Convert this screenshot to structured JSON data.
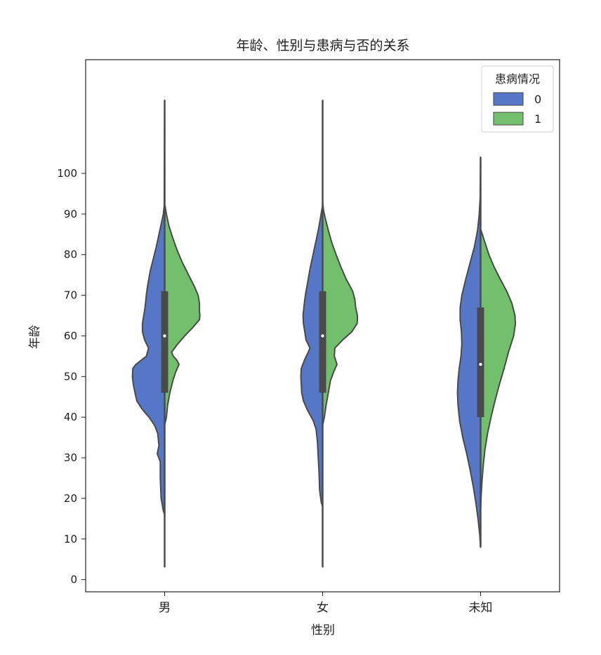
{
  "chart_data": {
    "type": "violin",
    "split": true,
    "title": "年龄、性别与患病与否的关系",
    "xlabel": "性别",
    "ylabel": "年龄",
    "categories": [
      "男",
      "女",
      "未知"
    ],
    "ylim": [
      -3,
      128
    ],
    "yticks": [
      0,
      10,
      20,
      30,
      40,
      50,
      60,
      70,
      80,
      90,
      100
    ],
    "legend": {
      "title": "患病情况",
      "position": "top-right",
      "entries": [
        {
          "label": "0",
          "color": "#5677c8"
        },
        {
          "label": "1",
          "color": "#72c06c"
        }
      ]
    },
    "series": [
      {
        "name": "0",
        "color": "#5677c8",
        "side": "left",
        "violins": [
          {
            "profile": [
              [
                16,
                0.0
              ],
              [
                17,
                0.03
              ],
              [
                20,
                0.08
              ],
              [
                25,
                0.1
              ],
              [
                29,
                0.1
              ],
              [
                31,
                0.17
              ],
              [
                33,
                0.13
              ],
              [
                36,
                0.16
              ],
              [
                38,
                0.23
              ],
              [
                40,
                0.36
              ],
              [
                42,
                0.52
              ],
              [
                44,
                0.64
              ],
              [
                46,
                0.68
              ],
              [
                48,
                0.72
              ],
              [
                50,
                0.74
              ],
              [
                52,
                0.73
              ],
              [
                53,
                0.66
              ],
              [
                55,
                0.42
              ],
              [
                57,
                0.37
              ],
              [
                59,
                0.46
              ],
              [
                61,
                0.51
              ],
              [
                63,
                0.51
              ],
              [
                65,
                0.48
              ],
              [
                67,
                0.45
              ],
              [
                69,
                0.43
              ],
              [
                71,
                0.41
              ],
              [
                73,
                0.38
              ],
              [
                76,
                0.33
              ],
              [
                79,
                0.26
              ],
              [
                82,
                0.19
              ],
              [
                85,
                0.13
              ],
              [
                88,
                0.07
              ],
              [
                90,
                0.03
              ],
              [
                92,
                0.01
              ],
              [
                118,
                0.0
              ]
            ]
          },
          {
            "profile": [
              [
                18,
                0.0
              ],
              [
                19,
                0.03
              ],
              [
                22,
                0.07
              ],
              [
                26,
                0.08
              ],
              [
                30,
                0.1
              ],
              [
                34,
                0.12
              ],
              [
                37,
                0.15
              ],
              [
                39,
                0.21
              ],
              [
                42,
                0.36
              ],
              [
                44,
                0.44
              ],
              [
                46,
                0.48
              ],
              [
                48,
                0.49
              ],
              [
                50,
                0.5
              ],
              [
                52,
                0.49
              ],
              [
                54,
                0.42
              ],
              [
                56,
                0.33
              ],
              [
                57,
                0.29
              ],
              [
                59,
                0.38
              ],
              [
                61,
                0.41
              ],
              [
                63,
                0.44
              ],
              [
                65,
                0.45
              ],
              [
                67,
                0.43
              ],
              [
                69,
                0.41
              ],
              [
                71,
                0.38
              ],
              [
                74,
                0.33
              ],
              [
                77,
                0.28
              ],
              [
                80,
                0.22
              ],
              [
                83,
                0.16
              ],
              [
                86,
                0.1
              ],
              [
                89,
                0.05
              ],
              [
                91,
                0.02
              ],
              [
                92,
                0.0
              ],
              [
                118,
                0.0
              ]
            ]
          },
          {
            "profile": [
              [
                8,
                0.0
              ],
              [
                11,
                0.02
              ],
              [
                15,
                0.06
              ],
              [
                19,
                0.11
              ],
              [
                23,
                0.17
              ],
              [
                27,
                0.24
              ],
              [
                31,
                0.32
              ],
              [
                35,
                0.41
              ],
              [
                39,
                0.48
              ],
              [
                43,
                0.52
              ],
              [
                46,
                0.53
              ],
              [
                49,
                0.52
              ],
              [
                52,
                0.49
              ],
              [
                55,
                0.45
              ],
              [
                58,
                0.43
              ],
              [
                61,
                0.44
              ],
              [
                64,
                0.47
              ],
              [
                67,
                0.47
              ],
              [
                70,
                0.43
              ],
              [
                74,
                0.34
              ],
              [
                78,
                0.24
              ],
              [
                82,
                0.14
              ],
              [
                86,
                0.07
              ],
              [
                90,
                0.03
              ],
              [
                94,
                0.01
              ],
              [
                104,
                0.0
              ]
            ]
          }
        ]
      },
      {
        "name": "1",
        "color": "#72c06c",
        "side": "right",
        "violins": [
          {
            "profile": [
              [
                38,
                0.0
              ],
              [
                40,
                0.04
              ],
              [
                43,
                0.07
              ],
              [
                46,
                0.12
              ],
              [
                49,
                0.19
              ],
              [
                51,
                0.25
              ],
              [
                53,
                0.33
              ],
              [
                54,
                0.28
              ],
              [
                55,
                0.2
              ],
              [
                56,
                0.16
              ],
              [
                58,
                0.3
              ],
              [
                60,
                0.46
              ],
              [
                62,
                0.64
              ],
              [
                64,
                0.8
              ],
              [
                65,
                0.81
              ],
              [
                66,
                0.8
              ],
              [
                68,
                0.8
              ],
              [
                70,
                0.77
              ],
              [
                72,
                0.69
              ],
              [
                75,
                0.55
              ],
              [
                78,
                0.41
              ],
              [
                81,
                0.29
              ],
              [
                84,
                0.19
              ],
              [
                87,
                0.1
              ],
              [
                90,
                0.04
              ],
              [
                92,
                0.01
              ]
            ]
          },
          {
            "profile": [
              [
                38,
                0.0
              ],
              [
                40,
                0.04
              ],
              [
                43,
                0.08
              ],
              [
                46,
                0.13
              ],
              [
                49,
                0.18
              ],
              [
                51,
                0.25
              ],
              [
                53,
                0.33
              ],
              [
                55,
                0.27
              ],
              [
                57,
                0.28
              ],
              [
                59,
                0.46
              ],
              [
                61,
                0.67
              ],
              [
                63,
                0.79
              ],
              [
                64,
                0.8
              ],
              [
                65,
                0.8
              ],
              [
                67,
                0.76
              ],
              [
                69,
                0.74
              ],
              [
                71,
                0.69
              ],
              [
                74,
                0.54
              ],
              [
                77,
                0.42
              ],
              [
                80,
                0.31
              ],
              [
                83,
                0.21
              ],
              [
                86,
                0.13
              ],
              [
                89,
                0.06
              ],
              [
                91,
                0.02
              ],
              [
                93,
                0.0
              ]
            ]
          },
          {
            "profile": [
              [
                17,
                0.0
              ],
              [
                20,
                0.01
              ],
              [
                24,
                0.03
              ],
              [
                28,
                0.06
              ],
              [
                32,
                0.1
              ],
              [
                36,
                0.16
              ],
              [
                40,
                0.24
              ],
              [
                44,
                0.33
              ],
              [
                48,
                0.43
              ],
              [
                52,
                0.54
              ],
              [
                56,
                0.64
              ],
              [
                60,
                0.76
              ],
              [
                63,
                0.8
              ],
              [
                65,
                0.79
              ],
              [
                68,
                0.72
              ],
              [
                71,
                0.6
              ],
              [
                74,
                0.45
              ],
              [
                77,
                0.31
              ],
              [
                80,
                0.19
              ],
              [
                83,
                0.1
              ],
              [
                85,
                0.04
              ],
              [
                86,
                0.01
              ]
            ]
          }
        ]
      }
    ],
    "boxplots": [
      {
        "category": "男",
        "whisker": [
          3,
          118
        ],
        "q1": 46,
        "q3": 71,
        "median": 60
      },
      {
        "category": "女",
        "whisker": [
          3,
          118
        ],
        "q1": 46,
        "q3": 71,
        "median": 60
      },
      {
        "category": "未知",
        "whisker": [
          8,
          104
        ],
        "q1": 40,
        "q3": 67,
        "median": 53
      }
    ]
  }
}
